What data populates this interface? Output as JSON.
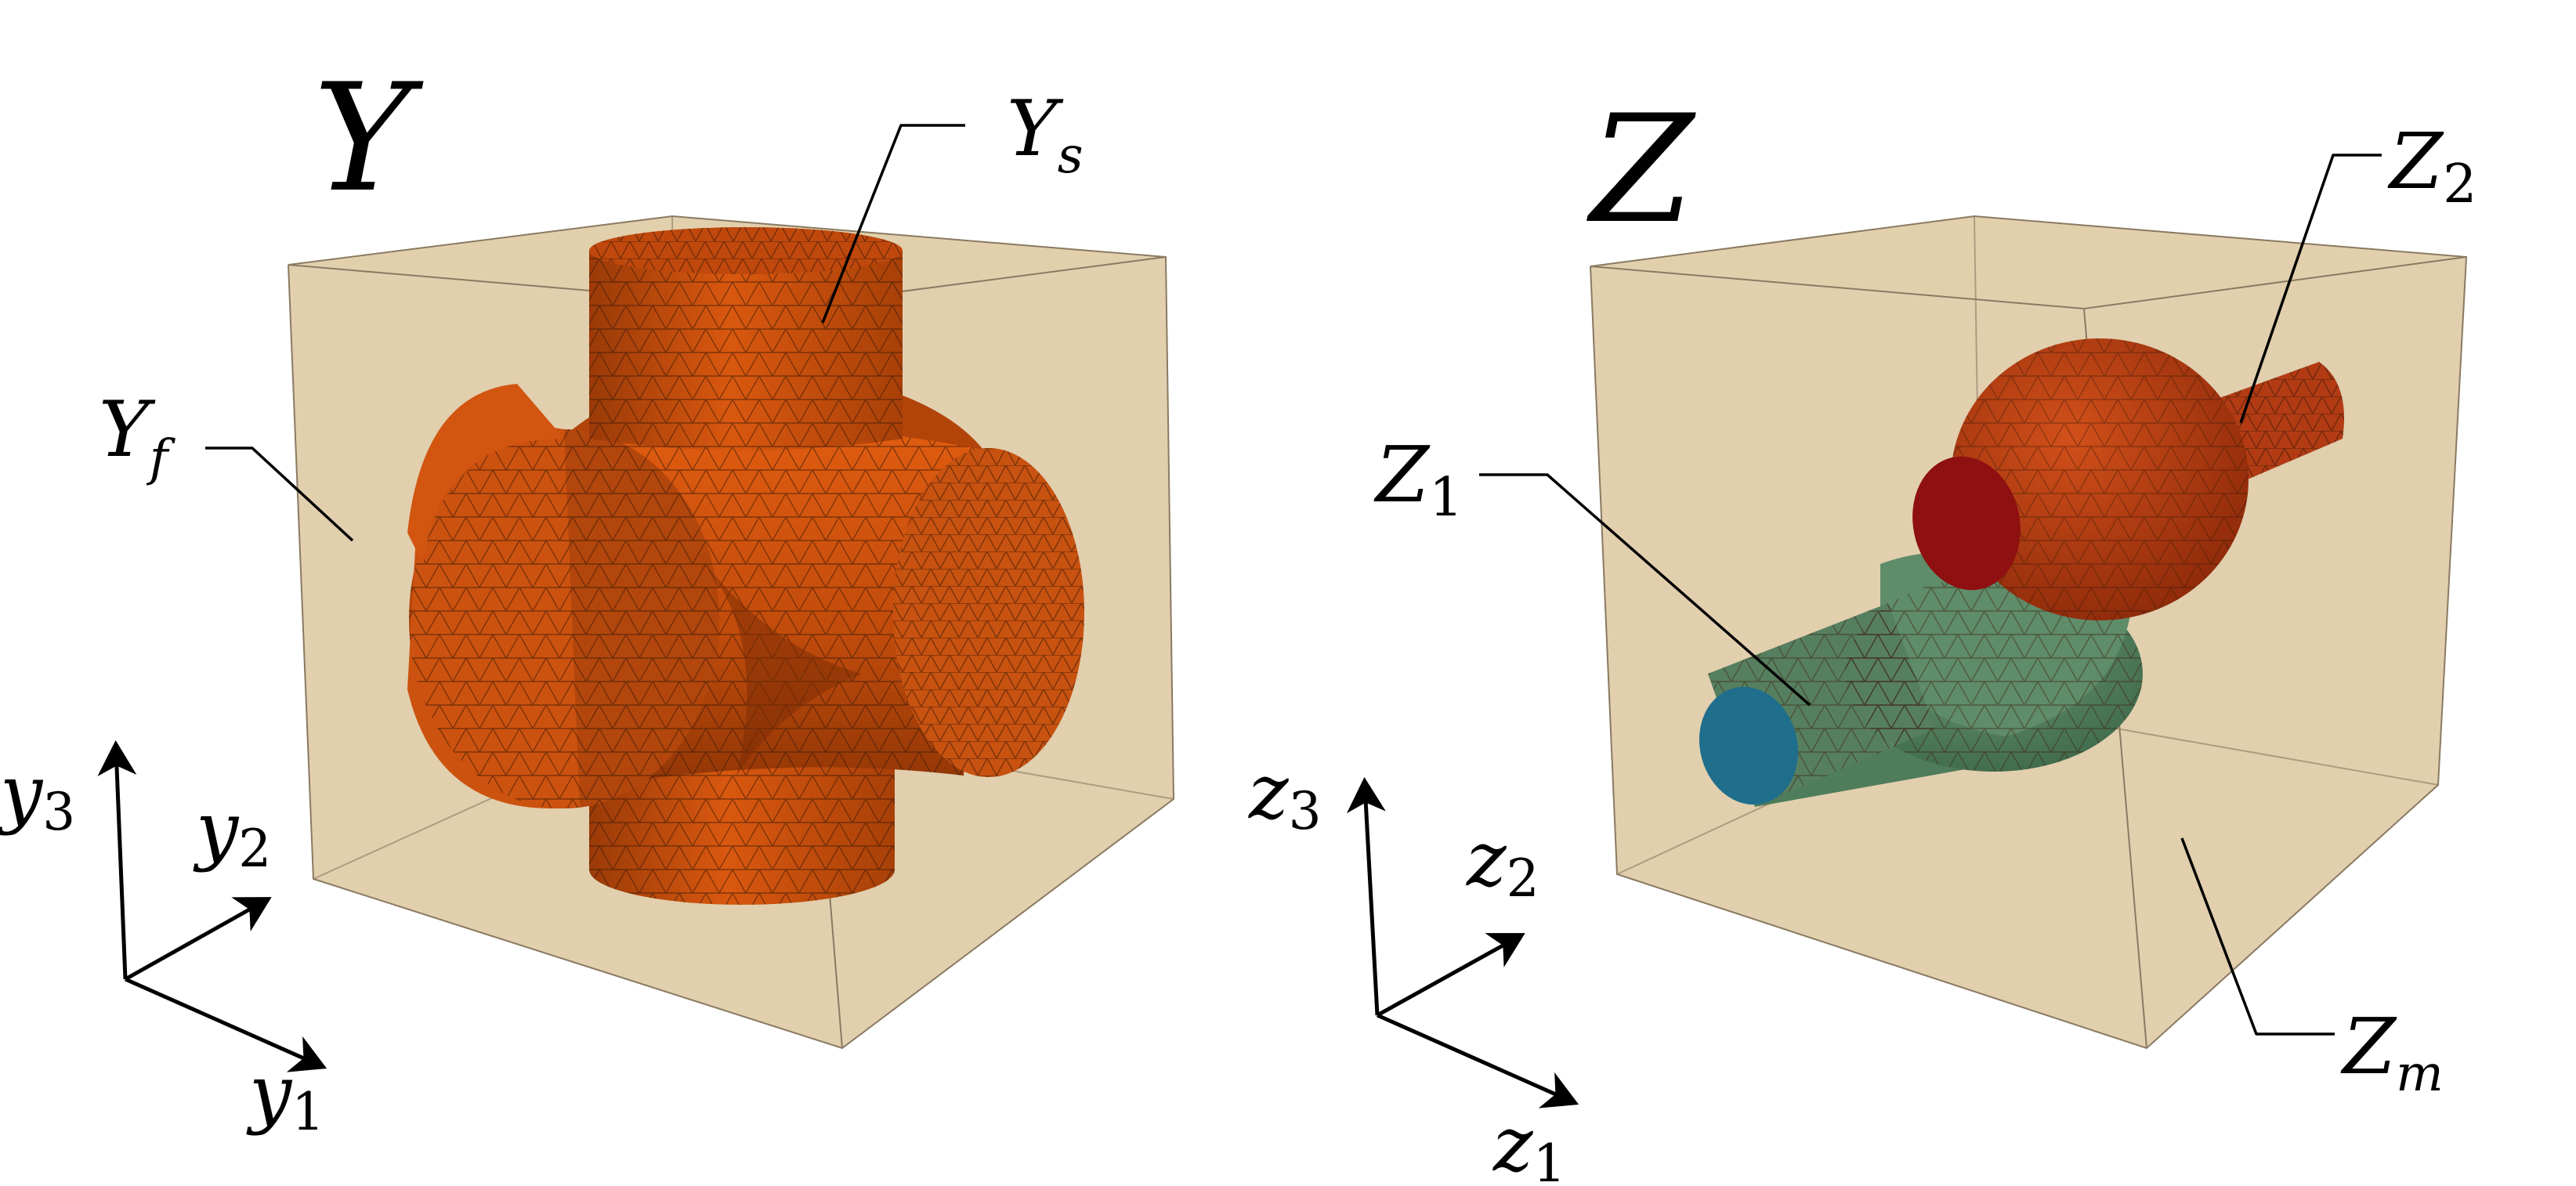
{
  "figure": {
    "left_panel": {
      "title": "Y",
      "labels": {
        "solid": "Y",
        "solid_sub": "s",
        "fluid": "Y",
        "fluid_sub": "f"
      },
      "axes": {
        "x1": "y",
        "x1_sub": "1",
        "x2": "y",
        "x2_sub": "2",
        "x3": "y",
        "x3_sub": "3"
      }
    },
    "right_panel": {
      "title": "Z",
      "labels": {
        "inclusion1": "Z",
        "inclusion1_sub": "1",
        "inclusion2": "Z",
        "inclusion2_sub": "2",
        "matrix": "Z",
        "matrix_sub": "m"
      },
      "axes": {
        "x1": "z",
        "x1_sub": "1",
        "x2": "z",
        "x2_sub": "2",
        "x3": "z",
        "x3_sub": "3"
      }
    }
  },
  "colors": {
    "box_face": "#dcc7a0",
    "box_edge": "#8a7a62",
    "solid": "#c8500f",
    "inclusion1": "#5e8a68",
    "inclusion1_cap": "#1f6e8c",
    "inclusion2": "#b83a14",
    "inclusion2_cap": "#8e1010"
  }
}
